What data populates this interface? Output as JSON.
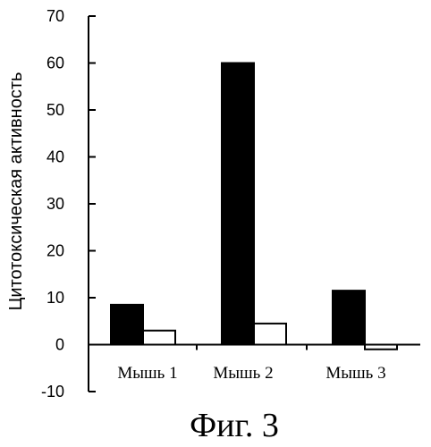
{
  "chart_data": {
    "type": "bar",
    "categories": [
      "Мышь 1",
      "Мышь 2",
      "Мышь 3"
    ],
    "series": [
      {
        "values": [
          8.5,
          60,
          11.5
        ],
        "color": "#000000"
      },
      {
        "values": [
          3,
          4.5,
          -1
        ],
        "color": "#ffffff"
      }
    ],
    "ylabel": "Цитотоксическая активность",
    "xlabel": "",
    "ylim": [
      -10,
      70
    ],
    "yticks": [
      -10,
      0,
      10,
      20,
      30,
      40,
      50,
      60,
      70
    ],
    "ytick_labels": [
      "-10",
      "0",
      "10",
      "20",
      "30",
      "40",
      "50",
      "60",
      "70"
    ]
  },
  "caption": "Фиг. 3"
}
